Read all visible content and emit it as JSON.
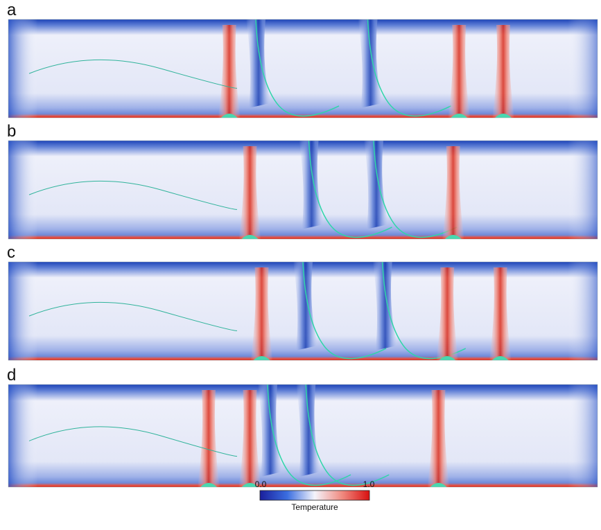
{
  "panels": [
    {
      "label": "a"
    },
    {
      "label": "b"
    },
    {
      "label": "c"
    },
    {
      "label": "d"
    }
  ],
  "colorbar": {
    "min_label": "0.0",
    "max_label": "1.0",
    "title": "Temperature"
  }
}
